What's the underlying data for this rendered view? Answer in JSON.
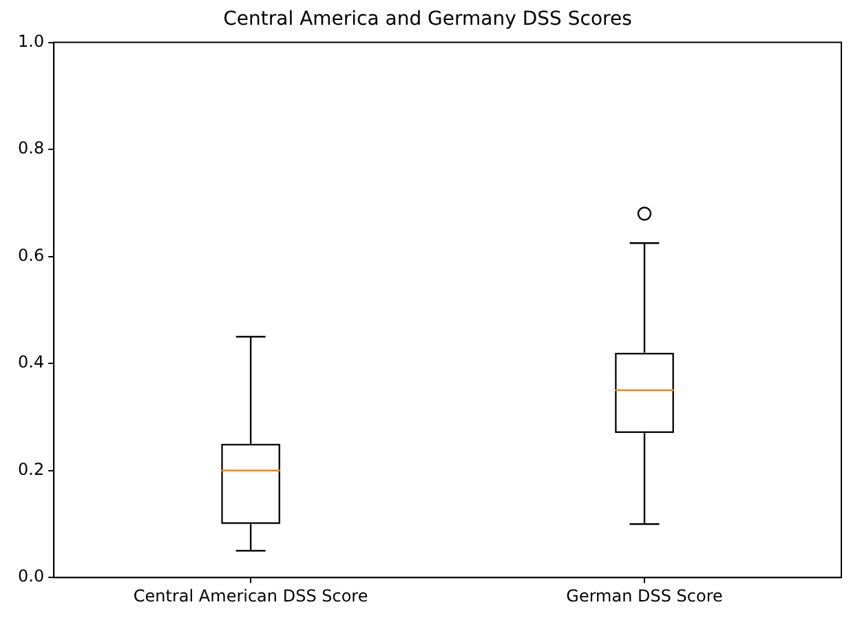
{
  "chart_data": {
    "type": "box",
    "title": "Central America and Germany DSS Scores",
    "categories": [
      "Central American DSS Score",
      "German DSS Score"
    ],
    "boxes": [
      {
        "low": 0.05,
        "q1": 0.1,
        "median": 0.2,
        "q3": 0.25,
        "high": 0.45
      },
      {
        "low": 0.1,
        "q1": 0.27,
        "median": 0.35,
        "q3": 0.42,
        "high": 0.625,
        "outliers": [
          0.68
        ]
      }
    ],
    "ylim": [
      0,
      1
    ],
    "yticks": [
      {
        "value": 0,
        "label": "0.0"
      },
      0.2,
      0.4,
      0.6,
      0.8,
      {
        "value": 1,
        "label": "1.0"
      }
    ],
    "grid": false,
    "legend": false
  }
}
